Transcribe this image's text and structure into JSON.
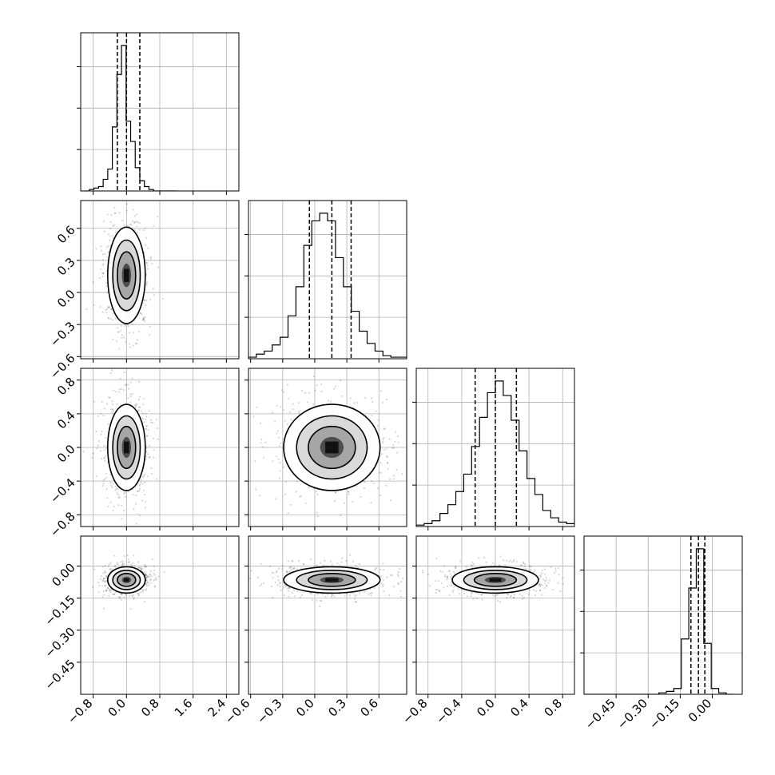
{
  "chart_data": {
    "type": "corner",
    "parameters": [
      {
        "range": [
          -1.1,
          2.7
        ],
        "ticks": [
          -0.8,
          0.0,
          0.8,
          1.6,
          2.4
        ],
        "tick_labels": [
          "−0.8",
          "0.0",
          "0.8",
          "1.6",
          "2.4"
        ],
        "quantiles": [
          -0.22,
          0.0,
          0.32
        ],
        "hist_counts": [
          0,
          1,
          2,
          3,
          8,
          15,
          44,
          80,
          100,
          48,
          34,
          16,
          7,
          3,
          1,
          0,
          0,
          0,
          0,
          0
        ],
        "median": 0.0,
        "std_x": 0.22,
        "std_y": 0.18
      },
      {
        "range": [
          -0.62,
          0.86
        ],
        "ticks": [
          -0.6,
          -0.3,
          0.0,
          0.3,
          0.6
        ],
        "tick_labels": [
          "−0.6",
          "−0.3",
          "0.0",
          "0.3",
          "0.6"
        ],
        "quantiles": [
          -0.05,
          0.16,
          0.34
        ],
        "hist_counts": [
          1,
          3,
          5,
          9,
          14,
          28,
          47,
          74,
          90,
          95,
          90,
          66,
          47,
          31,
          18,
          10,
          5,
          2,
          1,
          1
        ],
        "median": 0.16,
        "std_x": 0.22,
        "std_y": 0.22
      },
      {
        "range": [
          -0.94,
          0.94
        ],
        "ticks": [
          -0.8,
          -0.4,
          0.0,
          0.4,
          0.8
        ],
        "tick_labels": [
          "−0.8",
          "−0.4",
          "0.0",
          "0.4",
          "0.8"
        ],
        "quantiles": [
          -0.24,
          0.0,
          0.25
        ],
        "hist_counts": [
          1,
          2,
          4,
          9,
          15,
          24,
          36,
          55,
          75,
          92,
          100,
          90,
          73,
          52,
          33,
          22,
          11,
          6,
          3,
          2
        ],
        "median": 0.0,
        "std_x": 0.25,
        "std_y": 0.25
      },
      {
        "range": [
          -0.6,
          0.14
        ],
        "ticks": [
          -0.45,
          -0.3,
          -0.15,
          0.0
        ],
        "tick_labels": [
          "−0.45",
          "−0.30",
          "−0.15",
          "0.00"
        ],
        "quantiles": [
          -0.1,
          -0.065,
          -0.035
        ],
        "hist_counts": [
          0,
          0,
          0,
          0,
          0,
          0,
          0,
          0,
          0,
          0,
          1,
          2,
          4,
          38,
          73,
          100,
          35,
          4,
          1,
          0
        ],
        "median": -0.065,
        "std_x": 0.03,
        "std_y": 0.03
      }
    ],
    "grid": true
  }
}
